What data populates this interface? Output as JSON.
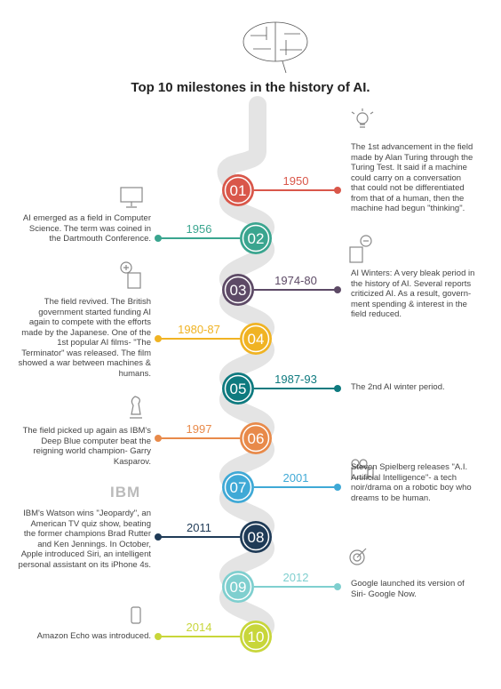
{
  "title": "Top 10 milestones in the history of AI.",
  "milestones": [
    {
      "number": "01",
      "year": "1950",
      "color": "#d9574a",
      "side": "right",
      "text": "The 1st advancement in the field made by Alan Turing through the Turing Test. It said if a machine could carry on a conversation that could not be differentiated from that of a human, then the machine had begun \"thinking\"."
    },
    {
      "number": "02",
      "year": "1956",
      "color": "#3aa58f",
      "side": "left",
      "text": "AI emerged as a field in Computer Science. The term was coined in the Dartmouth Conference."
    },
    {
      "number": "03",
      "year": "1974-80",
      "color": "#5d4a66",
      "side": "right",
      "text": "AI Winters: A very bleak period in the history of AI. Several reports criticized AI. As a result, govern-ment spending & interest in the field reduced."
    },
    {
      "number": "04",
      "year": "1980-87",
      "color": "#f0b323",
      "side": "left",
      "text": "The field revived. The British government started funding AI again to compete with the efforts made by the Japanese. One of the 1st popular AI films- \"The Terminator\" was released. The film showed a war between machines & humans."
    },
    {
      "number": "05",
      "year": "1987-93",
      "color": "#0e7a7f",
      "side": "right",
      "text": "The 2nd AI winter period."
    },
    {
      "number": "06",
      "year": "1997",
      "color": "#e88a4a",
      "side": "left",
      "text": "The field picked up again as IBM's Deep Blue computer beat the reigning world champion- Garry Kasparov."
    },
    {
      "number": "07",
      "year": "2001",
      "color": "#3fa9d6",
      "side": "right",
      "text": "Steven Spielberg releases \"A.I. Artificial Intelligence\"- a tech noir/drama on a robotic boy who dreams to be human."
    },
    {
      "number": "08",
      "year": "2011",
      "color": "#1f3b57",
      "side": "left",
      "logo": "IBM",
      "text": "IBM's Watson wins \"Jeopardy\", an American TV quiz show, beating the former champions Brad Rutter and Ken Jennings. In October, Apple introduced Siri, an intelligent personal assistant on its iPhone 4s."
    },
    {
      "number": "09",
      "year": "2012",
      "color": "#7fcfcf",
      "side": "right",
      "text": "Google launched its version of Siri- Google Now."
    },
    {
      "number": "10",
      "year": "2014",
      "color": "#c8d63a",
      "side": "left",
      "text": "Amazon Echo was introduced."
    }
  ]
}
